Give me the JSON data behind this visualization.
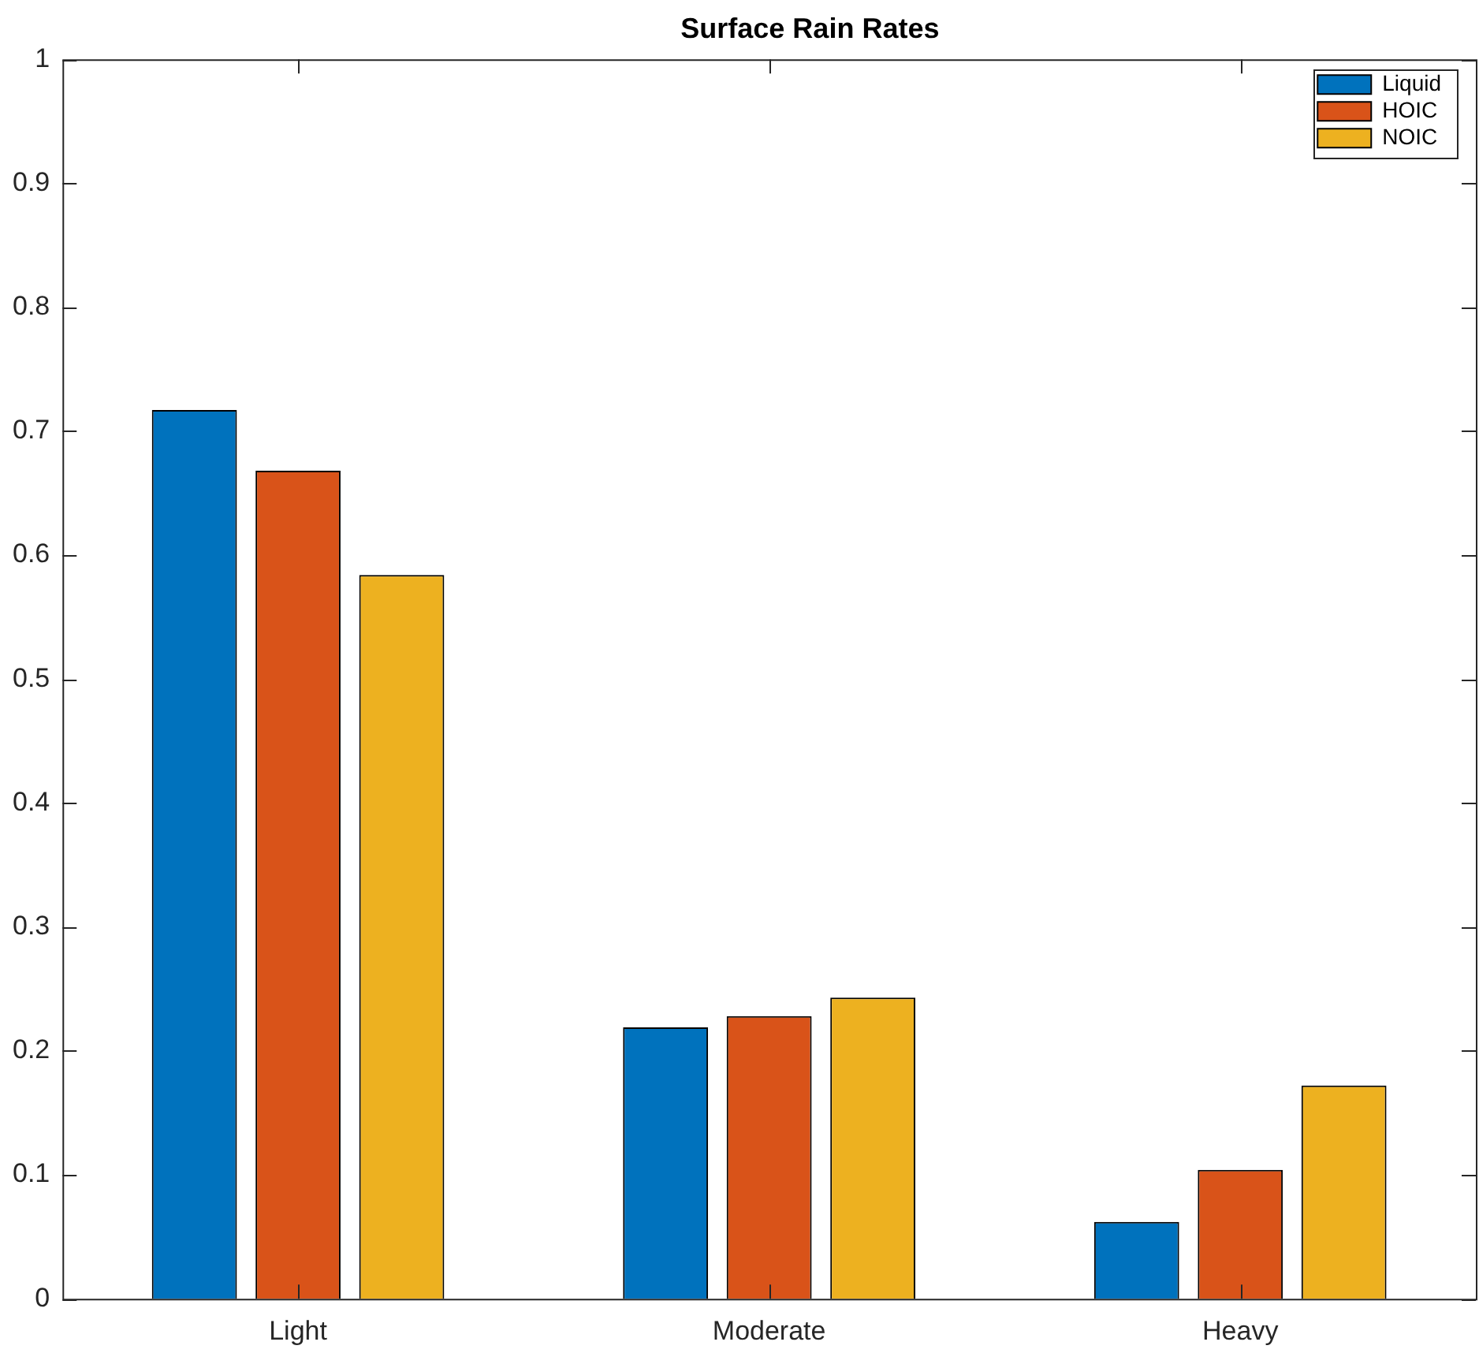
{
  "chart_data": {
    "type": "bar",
    "title": "Surface Rain Rates",
    "categories": [
      "Light",
      "Moderate",
      "Heavy"
    ],
    "series": [
      {
        "name": "Liquid",
        "color": "#0072bd",
        "values": [
          0.717,
          0.219,
          0.062
        ]
      },
      {
        "name": "HOIC",
        "color": "#d95319",
        "values": [
          0.668,
          0.228,
          0.104
        ]
      },
      {
        "name": "NOIC",
        "color": "#edb120",
        "values": [
          0.584,
          0.243,
          0.172
        ]
      }
    ],
    "ylim": [
      0,
      1
    ],
    "yticks": [
      0,
      0.1,
      0.2,
      0.3,
      0.4,
      0.5,
      0.6,
      0.7,
      0.8,
      0.9,
      1
    ],
    "legend": "top right"
  }
}
